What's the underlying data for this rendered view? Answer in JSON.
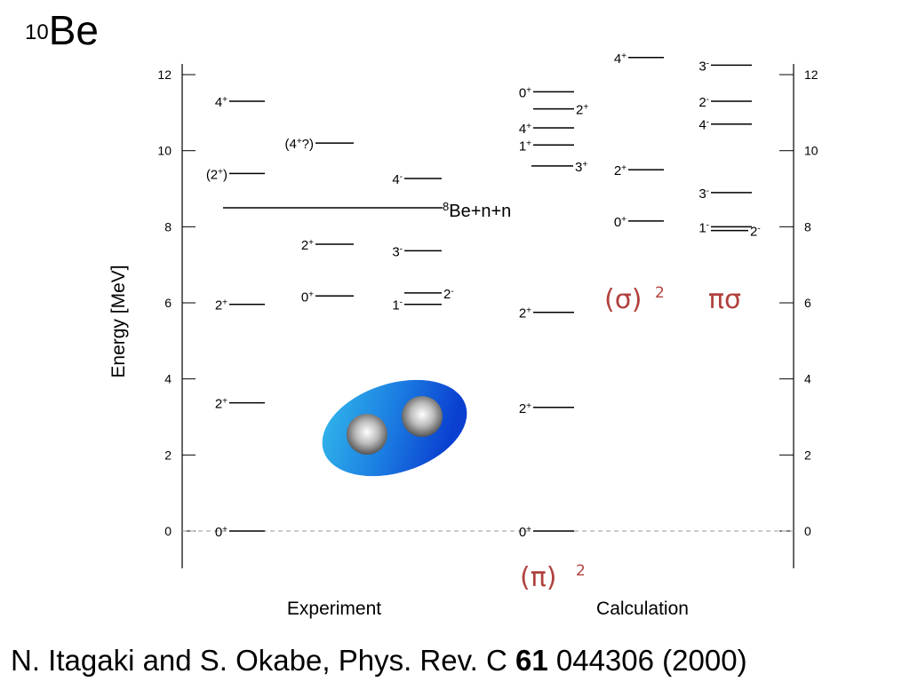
{
  "title": {
    "mass_number": "10",
    "symbol": "Be"
  },
  "citation": {
    "authors": "N. Itagaki and S. Okabe, Phys. Rev. C",
    "volume": "61",
    "rest": "044306  (2000)"
  },
  "y_axis_label": "Energy  [MeV]",
  "ticks": [
    "0",
    "2",
    "4",
    "6",
    "8",
    "10",
    "12"
  ],
  "column_labels": {
    "experiment": "Experiment",
    "calculation": "Calculation"
  },
  "threshold": {
    "mass": "8",
    "text": "Be+n+n",
    "energy": 8.5
  },
  "config_labels": {
    "pi2": "(π)",
    "sigma2": "(σ)",
    "pisigma": "πσ",
    "square": "2"
  },
  "experiment": [
    {
      "col": "e1",
      "E": 0,
      "J": "0",
      "parity": "+"
    },
    {
      "col": "e1",
      "E": 3.37,
      "J": "2",
      "parity": "+"
    },
    {
      "col": "e1",
      "E": 5.96,
      "J": "2",
      "parity": "+"
    },
    {
      "col": "e1",
      "E": 9.4,
      "J": "(2",
      "parity": "+",
      "suffix": ")"
    },
    {
      "col": "e1",
      "E": 11.3,
      "J": "4",
      "parity": "+"
    },
    {
      "col": "e2",
      "E": 6.18,
      "J": "0",
      "parity": "+"
    },
    {
      "col": "e2",
      "E": 7.54,
      "J": "2",
      "parity": "+"
    },
    {
      "col": "e2",
      "E": 10.2,
      "J": "(4",
      "parity": "+",
      "suffix": "?)"
    },
    {
      "col": "e3",
      "E": 5.96,
      "J": "1",
      "parity": "-"
    },
    {
      "col": "e3",
      "E": 6.26,
      "J": "2",
      "parity": "-"
    },
    {
      "col": "e3",
      "E": 7.37,
      "J": "3",
      "parity": "-"
    },
    {
      "col": "e3",
      "E": 9.27,
      "J": "4",
      "parity": "-"
    }
  ],
  "calculation": [
    {
      "col": "c1",
      "E": 0,
      "J": "0",
      "parity": "+"
    },
    {
      "col": "c1",
      "E": 3.25,
      "J": "2",
      "parity": "+"
    },
    {
      "col": "c1",
      "E": 5.75,
      "J": "2",
      "parity": "+"
    },
    {
      "col": "c1",
      "E": 9.6,
      "J": "3",
      "parity": "+"
    },
    {
      "col": "c1",
      "E": 10.15,
      "J": "1",
      "parity": "+"
    },
    {
      "col": "c1",
      "E": 10.6,
      "J": "4",
      "parity": "+"
    },
    {
      "col": "c1",
      "E": 11.1,
      "J": "2",
      "parity": "+"
    },
    {
      "col": "c1",
      "E": 11.55,
      "J": "0",
      "parity": "+"
    },
    {
      "col": "c2",
      "E": 8.15,
      "J": "0",
      "parity": "+"
    },
    {
      "col": "c2",
      "E": 9.5,
      "J": "2",
      "parity": "+"
    },
    {
      "col": "c2",
      "E": 12.45,
      "J": "4",
      "parity": "+"
    },
    {
      "col": "c3",
      "E": 8.0,
      "J": "1",
      "parity": "-"
    },
    {
      "col": "c3",
      "E": 7.9,
      "J": "2",
      "parity": "-"
    },
    {
      "col": "c3",
      "E": 8.9,
      "J": "3",
      "parity": "-"
    },
    {
      "col": "c3",
      "E": 10.7,
      "J": "4",
      "parity": "-"
    },
    {
      "col": "c3",
      "E": 11.3,
      "J": "2",
      "parity": "-"
    },
    {
      "col": "c3",
      "E": 12.25,
      "J": "3",
      "parity": "-"
    }
  ]
}
